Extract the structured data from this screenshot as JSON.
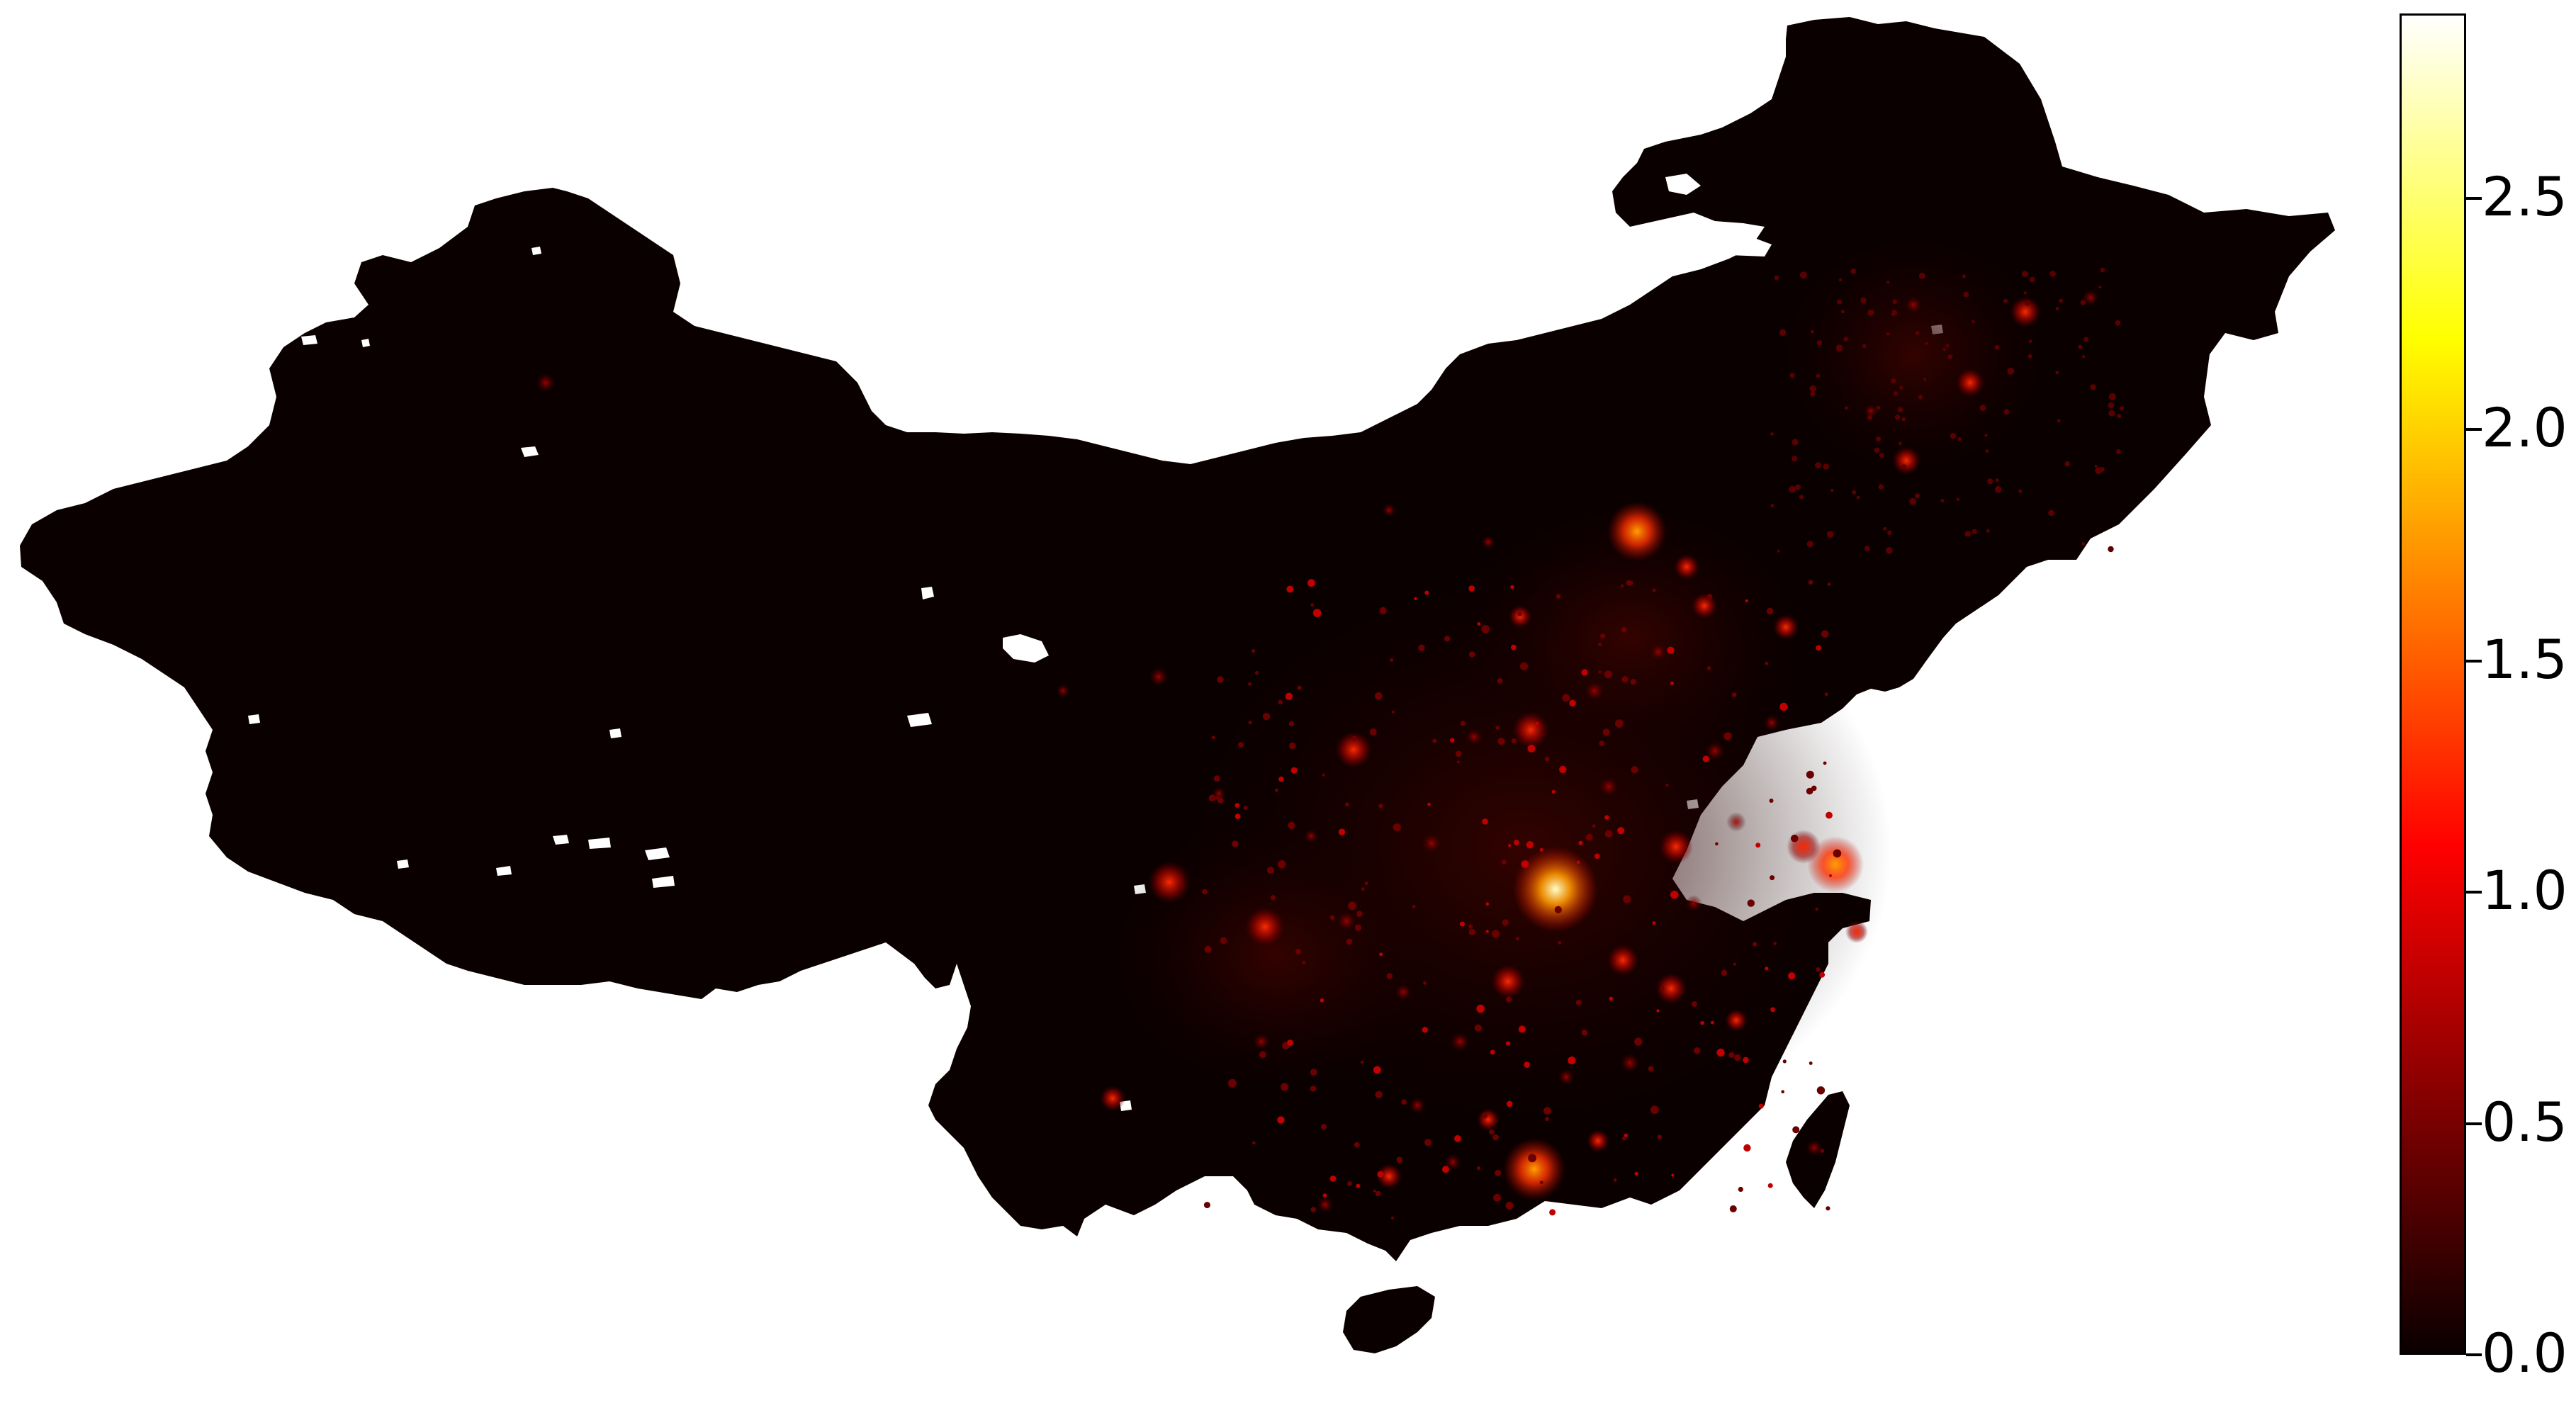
{
  "map": {
    "country": "China",
    "background_color": "#ffffff",
    "land_color": "#0a0000",
    "colormap": "hot"
  },
  "colorbar": {
    "min": 0.0,
    "max": 2.9,
    "ticks": [
      {
        "value": 0.0,
        "label": "0.0"
      },
      {
        "value": 0.5,
        "label": "0.5"
      },
      {
        "value": 1.0,
        "label": "1.0"
      },
      {
        "value": 1.5,
        "label": "1.5"
      },
      {
        "value": 2.0,
        "label": "2.0"
      },
      {
        "value": 2.5,
        "label": "2.5"
      }
    ],
    "gradient_stops": [
      {
        "value": 0.0,
        "color": "#0a0000"
      },
      {
        "value": 1.1,
        "color": "#ff0000"
      },
      {
        "value": 2.2,
        "color": "#ffff00"
      },
      {
        "value": 2.9,
        "color": "#ffffff"
      }
    ]
  },
  "hotspots": [
    {
      "value": 2.5,
      "core_color": "#ffffcc"
    },
    {
      "value": 1.9,
      "core_color": "#ffb000"
    },
    {
      "value": 1.6,
      "core_color": "#ff7a00"
    },
    {
      "value": 1.5,
      "core_color": "#ff6600"
    },
    {
      "value": 1.3,
      "core_color": "#ff3300"
    },
    {
      "value": 1.0,
      "core_color": "#e60000"
    },
    {
      "value": 0.7,
      "core_color": "#a00000"
    },
    {
      "value": 0.5,
      "core_color": "#700000"
    }
  ]
}
